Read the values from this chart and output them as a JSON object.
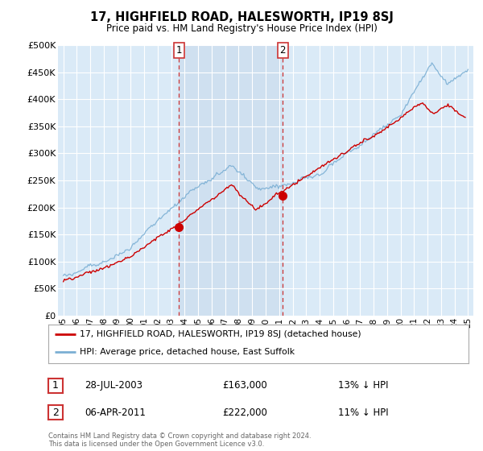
{
  "title": "17, HIGHFIELD ROAD, HALESWORTH, IP19 8SJ",
  "subtitle": "Price paid vs. HM Land Registry's House Price Index (HPI)",
  "legend_line1": "17, HIGHFIELD ROAD, HALESWORTH, IP19 8SJ (detached house)",
  "legend_line2": "HPI: Average price, detached house, East Suffolk",
  "annotation1": {
    "label": "1",
    "date": "28-JUL-2003",
    "price": "£163,000",
    "pct": "13% ↓ HPI",
    "x_year": 2003.58,
    "y_val": 163000
  },
  "annotation2": {
    "label": "2",
    "date": "06-APR-2011",
    "price": "£222,000",
    "pct": "11% ↓ HPI",
    "x_year": 2011.27,
    "y_val": 222000
  },
  "footer1": "Contains HM Land Registry data © Crown copyright and database right 2024.",
  "footer2": "This data is licensed under the Open Government Licence v3.0.",
  "ylim": [
    0,
    500000
  ],
  "yticks": [
    0,
    50000,
    100000,
    150000,
    200000,
    250000,
    300000,
    350000,
    400000,
    450000,
    500000
  ],
  "xlim_left": 1994.6,
  "xlim_right": 2025.4,
  "bg_color": "#daeaf7",
  "shade_color": "#cfe0f0",
  "line_color_red": "#cc0000",
  "line_color_blue": "#7bafd4",
  "vline_color": "#cc3333",
  "grid_color": "#ffffff"
}
